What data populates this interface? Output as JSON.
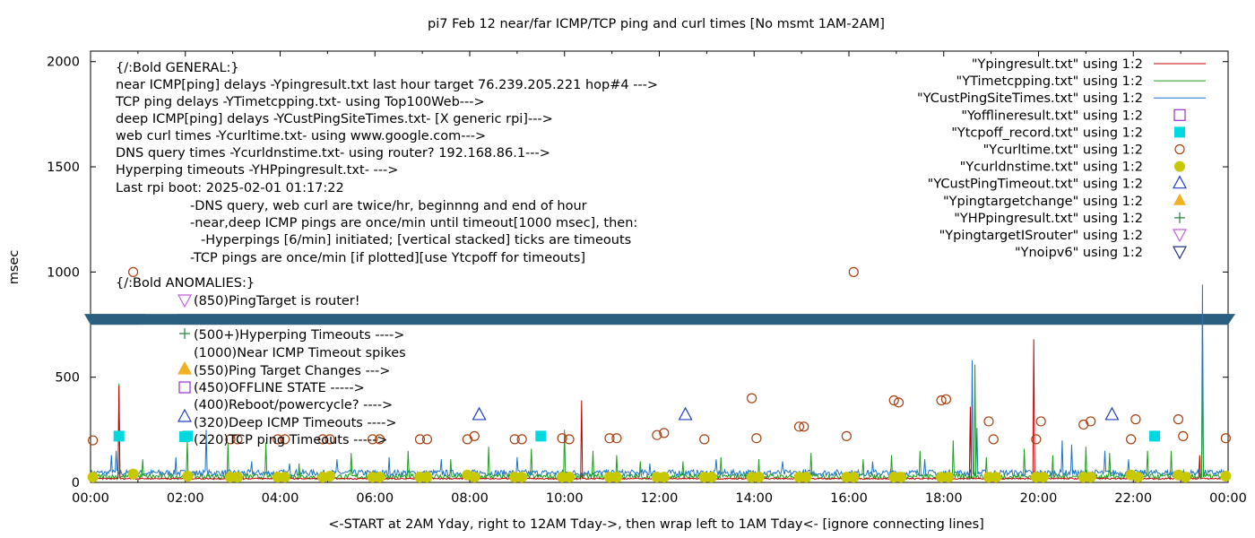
{
  "chart_data": {
    "type": "line",
    "title": "pi7 Feb 12  near/far ICMP/TCP ping and curl times [No msmt 1AM-2AM]",
    "xlabel": "<-START at 2AM Yday, right to 12AM Tday->, then wrap left to 1AM Tday<- [ignore connecting lines]",
    "ylabel": "msec",
    "xlim": [
      0,
      24
    ],
    "ylim": [
      0,
      2050
    ],
    "x_ticks": [
      "00:00",
      "02:00",
      "04:00",
      "06:00",
      "08:00",
      "10:00",
      "12:00",
      "14:00",
      "16:00",
      "18:00",
      "20:00",
      "22:00",
      "00:00"
    ],
    "y_ticks": [
      "0",
      "500",
      "1000",
      "1500",
      "2000"
    ],
    "y_tick_values": [
      0,
      500,
      1000,
      1500,
      2000
    ],
    "legend_position": "top-right",
    "legend": [
      {
        "label": "\"Ypingresult.txt\" using 1:2",
        "style": "line",
        "color": "#c00000"
      },
      {
        "label": "\"YTimetcpping.txt\" using 1:2",
        "style": "line",
        "color": "#1f9e1f"
      },
      {
        "label": "\"YCustPingSiteTimes.txt\" using 1:2",
        "style": "line",
        "color": "#1a73c8"
      },
      {
        "label": "\"Yofflineresult.txt\" using 1:2",
        "style": "open-square",
        "color": "#9b30c8"
      },
      {
        "label": "\"Ytcpoff_record.txt\" using 1:2",
        "style": "filled-square",
        "color": "#00d8e0"
      },
      {
        "label": "\"Ycurltime.txt\" using 1:2",
        "style": "open-circle",
        "color": "#a84010"
      },
      {
        "label": "\"Ycurldnstime.txt\" using 1:2",
        "style": "filled-circle",
        "color": "#c8c800"
      },
      {
        "label": "\"YCustPingTimeout.txt\" using 1:2",
        "style": "open-triangle",
        "color": "#2040c0"
      },
      {
        "label": "\"Ypingtargetchange\" using 1:2",
        "style": "filled-triangle",
        "color": "#f0b020"
      },
      {
        "label": "\"YHPpingresult.txt\" using 1:2",
        "style": "plus",
        "color": "#208040"
      },
      {
        "label": "\"YpingtargetISrouter\" using 1:2",
        "style": "open-down-triangle",
        "color": "#c060e0"
      },
      {
        "label": "\"Ynoipv6\" using 1:2",
        "style": "open-down-triangle",
        "color": "#203080"
      }
    ],
    "annotations": [
      "{/:Bold GENERAL:}",
      "near ICMP[ping] delays -Ypingresult.txt last hour target 76.239.205.221 hop#4 --->",
      "TCP ping delays -YTimetcpping.txt- using Top100Web--->",
      "deep ICMP[ping] delays -YCustPingSiteTimes.txt- [X generic rpi]--->",
      "web curl times -Ycurltime.txt- using www.google.com--->",
      "DNS query times -Ycurldnstime.txt- using router? 192.168.86.1--->",
      "Hyperping timeouts -YHPpingresult.txt- --->",
      "Last rpi boot: 2025-02-01 01:17:22",
      "-DNS query, web curl are twice/hr, beginnng and end of hour",
      "-near,deep ICMP pings are once/min until timeout[1000 msec], then:",
      "-Hyperpings [6/min] initiated; [vertical stacked] ticks are timeouts",
      "-TCP pings are once/min [if plotted][use Ytcpoff for timeouts]",
      "{/:Bold ANOMALIES:}",
      "(850)PingTarget is router!",
      "(500+)Hyperping Timeouts ---->",
      "(1000)Near ICMP Timeout spikes",
      "(550)Ping Target Changes --->",
      "(450)OFFLINE STATE ----->",
      "(400)Reboot/powercycle? ---->",
      "(320)Deep ICMP Timeouts ---->",
      "(220)TCP ping Timeouts ----->"
    ],
    "band": {
      "y": 775,
      "color": "#2b5f7f"
    },
    "curl_points": [
      [
        0.05,
        200
      ],
      [
        0.9,
        1000
      ],
      [
        2.95,
        205
      ],
      [
        3.1,
        205
      ],
      [
        3.95,
        205
      ],
      [
        4.1,
        205
      ],
      [
        4.9,
        205
      ],
      [
        5.05,
        205
      ],
      [
        5.95,
        205
      ],
      [
        6.1,
        205
      ],
      [
        6.95,
        205
      ],
      [
        7.1,
        205
      ],
      [
        7.95,
        205
      ],
      [
        8.1,
        220
      ],
      [
        8.95,
        205
      ],
      [
        9.1,
        205
      ],
      [
        9.95,
        210
      ],
      [
        10.1,
        205
      ],
      [
        10.95,
        210
      ],
      [
        11.1,
        210
      ],
      [
        11.95,
        225
      ],
      [
        12.1,
        235
      ],
      [
        12.95,
        205
      ],
      [
        13.95,
        400
      ],
      [
        14.05,
        210
      ],
      [
        14.95,
        265
      ],
      [
        15.05,
        265
      ],
      [
        15.95,
        220
      ],
      [
        16.1,
        1000
      ],
      [
        16.95,
        390
      ],
      [
        17.05,
        380
      ],
      [
        17.95,
        390
      ],
      [
        18.05,
        395
      ],
      [
        18.95,
        290
      ],
      [
        19.05,
        205
      ],
      [
        19.95,
        205
      ],
      [
        20.05,
        290
      ],
      [
        20.95,
        275
      ],
      [
        21.1,
        290
      ],
      [
        21.95,
        205
      ],
      [
        22.05,
        300
      ],
      [
        22.95,
        300
      ],
      [
        23.05,
        220
      ],
      [
        23.95,
        210
      ]
    ],
    "dns_points": [
      [
        0.05,
        25
      ],
      [
        0.9,
        40
      ],
      [
        2.05,
        30
      ],
      [
        2.95,
        25
      ],
      [
        3.1,
        25
      ],
      [
        3.95,
        25
      ],
      [
        4.1,
        25
      ],
      [
        4.9,
        25
      ],
      [
        5.05,
        30
      ],
      [
        5.95,
        25
      ],
      [
        6.1,
        25
      ],
      [
        6.95,
        25
      ],
      [
        7.1,
        25
      ],
      [
        7.95,
        35
      ],
      [
        8.1,
        25
      ],
      [
        8.95,
        25
      ],
      [
        9.1,
        25
      ],
      [
        9.95,
        25
      ],
      [
        10.1,
        25
      ],
      [
        10.95,
        25
      ],
      [
        11.1,
        25
      ],
      [
        11.95,
        25
      ],
      [
        12.1,
        25
      ],
      [
        12.95,
        25
      ],
      [
        13.1,
        25
      ],
      [
        13.95,
        25
      ],
      [
        14.1,
        25
      ],
      [
        14.95,
        25
      ],
      [
        15.1,
        25
      ],
      [
        15.95,
        25
      ],
      [
        16.1,
        25
      ],
      [
        16.95,
        25
      ],
      [
        17.1,
        25
      ],
      [
        17.95,
        25
      ],
      [
        18.1,
        25
      ],
      [
        18.95,
        25
      ],
      [
        19.1,
        25
      ],
      [
        19.95,
        25
      ],
      [
        20.1,
        25
      ],
      [
        20.95,
        25
      ],
      [
        21.1,
        25
      ],
      [
        21.95,
        35
      ],
      [
        22.1,
        25
      ],
      [
        22.95,
        35
      ],
      [
        23.1,
        25
      ],
      [
        23.95,
        30
      ]
    ],
    "tcpoff_points": [
      [
        0.6,
        220
      ],
      [
        2.05,
        220
      ],
      [
        9.5,
        220
      ],
      [
        22.45,
        220
      ]
    ],
    "deep_timeout_points": [
      [
        8.2,
        320
      ],
      [
        12.55,
        320
      ],
      [
        21.55,
        320
      ]
    ],
    "red_spikes": [
      [
        0.6,
        460
      ],
      [
        10.35,
        390
      ],
      [
        18.55,
        360
      ],
      [
        19.9,
        680
      ],
      [
        23.4,
        130
      ]
    ],
    "green_spikes": [
      [
        0.6,
        470
      ],
      [
        1.1,
        110
      ],
      [
        2.05,
        200
      ],
      [
        2.9,
        190
      ],
      [
        3.7,
        190
      ],
      [
        4.4,
        90
      ],
      [
        5.5,
        140
      ],
      [
        6.7,
        150
      ],
      [
        7.6,
        110
      ],
      [
        8.4,
        170
      ],
      [
        9.3,
        160
      ],
      [
        10.0,
        250
      ],
      [
        10.6,
        150
      ],
      [
        11.1,
        130
      ],
      [
        11.6,
        100
      ],
      [
        12.5,
        100
      ],
      [
        13.3,
        120
      ],
      [
        14.1,
        110
      ],
      [
        15.2,
        140
      ],
      [
        16.3,
        110
      ],
      [
        16.9,
        130
      ],
      [
        17.5,
        150
      ],
      [
        18.2,
        200
      ],
      [
        18.65,
        560
      ],
      [
        18.9,
        120
      ],
      [
        19.7,
        160
      ],
      [
        20.3,
        130
      ],
      [
        21.0,
        170
      ],
      [
        21.5,
        140
      ],
      [
        22.3,
        150
      ],
      [
        22.8,
        150
      ],
      [
        23.45,
        520
      ]
    ],
    "blue_spikes": [
      [
        0.45,
        130
      ],
      [
        0.55,
        150
      ],
      [
        1.8,
        120
      ],
      [
        2.45,
        250
      ],
      [
        3.4,
        100
      ],
      [
        4.2,
        90
      ],
      [
        5.2,
        110
      ],
      [
        6.3,
        120
      ],
      [
        7.4,
        110
      ],
      [
        9.0,
        120
      ],
      [
        11.8,
        90
      ],
      [
        13.2,
        110
      ],
      [
        14.6,
        100
      ],
      [
        16.5,
        100
      ],
      [
        17.6,
        110
      ],
      [
        18.6,
        580
      ],
      [
        18.7,
        260
      ],
      [
        20.5,
        200
      ],
      [
        20.7,
        180
      ],
      [
        21.4,
        150
      ],
      [
        21.9,
        110
      ],
      [
        23.45,
        940
      ]
    ]
  }
}
